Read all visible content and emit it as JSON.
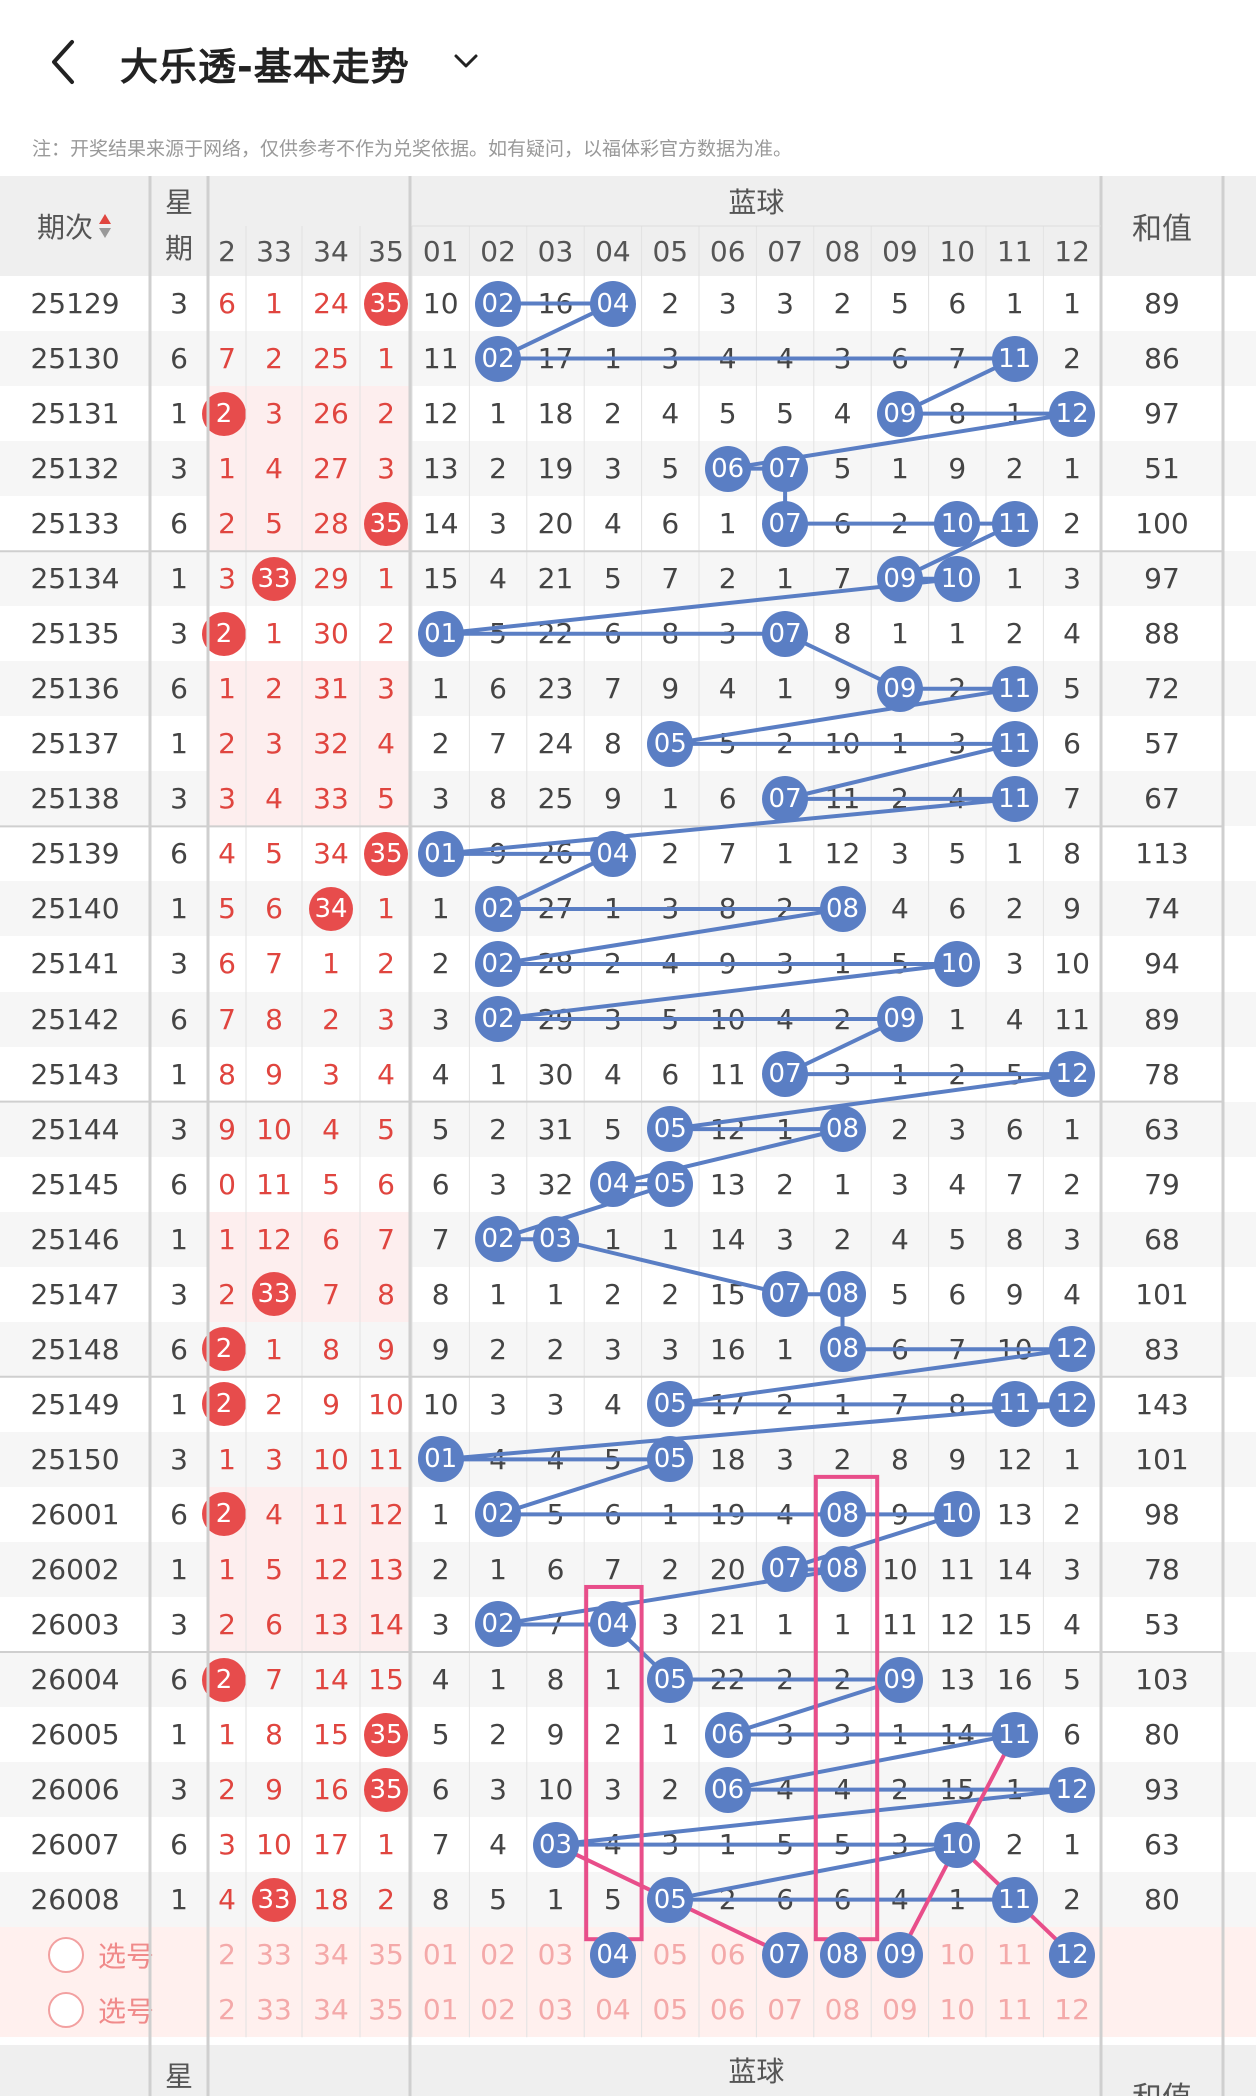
{
  "header": {
    "title": "大乐透-基本走势",
    "note": "注：开奖结果来源于网络，仅供参考不作为兑奖依据。如有疑问，以福体彩官方数据为准。"
  },
  "table": {
    "col_period": "期次",
    "col_week": "星期",
    "col_blue_group": "蓝球",
    "col_sum": "和值",
    "red_headers": [
      "2",
      "33",
      "34",
      "35"
    ],
    "blue_headers": [
      "01",
      "02",
      "03",
      "04",
      "05",
      "06",
      "07",
      "08",
      "09",
      "10",
      "11",
      "12"
    ],
    "rows": [
      {
        "p": "25129",
        "w": "3",
        "red": [
          "6",
          "1",
          "24",
          "35"
        ],
        "redHit": [
          false,
          false,
          false,
          true
        ],
        "blue": [
          "10",
          "02",
          "16",
          "04",
          "2",
          "3",
          "3",
          "2",
          "5",
          "6",
          "1",
          "1"
        ],
        "sum": "89"
      },
      {
        "p": "25130",
        "w": "6",
        "red": [
          "7",
          "2",
          "25",
          "1"
        ],
        "redHit": [
          false,
          false,
          false,
          false
        ],
        "blue": [
          "11",
          "02",
          "17",
          "1",
          "3",
          "4",
          "4",
          "3",
          "6",
          "7",
          "11",
          "2"
        ],
        "sum": "86"
      },
      {
        "p": "25131",
        "w": "1",
        "red": [
          "2",
          "3",
          "26",
          "2"
        ],
        "redHit": [
          true,
          false,
          false,
          false
        ],
        "blue": [
          "12",
          "1",
          "18",
          "2",
          "4",
          "5",
          "5",
          "4",
          "09",
          "8",
          "1",
          "12"
        ],
        "sum": "97"
      },
      {
        "p": "25132",
        "w": "3",
        "red": [
          "1",
          "4",
          "27",
          "3"
        ],
        "redHit": [
          false,
          false,
          false,
          false
        ],
        "blue": [
          "13",
          "2",
          "19",
          "3",
          "5",
          "06",
          "07",
          "5",
          "1",
          "9",
          "2",
          "1"
        ],
        "sum": "51"
      },
      {
        "p": "25133",
        "w": "6",
        "red": [
          "2",
          "5",
          "28",
          "35"
        ],
        "redHit": [
          false,
          false,
          false,
          true
        ],
        "blue": [
          "14",
          "3",
          "20",
          "4",
          "6",
          "1",
          "07",
          "6",
          "2",
          "10",
          "11",
          "2"
        ],
        "sum": "100"
      },
      {
        "p": "25134",
        "w": "1",
        "red": [
          "3",
          "33",
          "29",
          "1"
        ],
        "redHit": [
          false,
          true,
          false,
          false
        ],
        "blue": [
          "15",
          "4",
          "21",
          "5",
          "7",
          "2",
          "1",
          "7",
          "09",
          "10",
          "1",
          "3"
        ],
        "sum": "97"
      },
      {
        "p": "25135",
        "w": "3",
        "red": [
          "2",
          "1",
          "30",
          "2"
        ],
        "redHit": [
          true,
          false,
          false,
          false
        ],
        "blue": [
          "01",
          "5",
          "22",
          "6",
          "8",
          "3",
          "07",
          "8",
          "1",
          "1",
          "2",
          "4"
        ],
        "sum": "88"
      },
      {
        "p": "25136",
        "w": "6",
        "red": [
          "1",
          "2",
          "31",
          "3"
        ],
        "redHit": [
          false,
          false,
          false,
          false
        ],
        "blue": [
          "1",
          "6",
          "23",
          "7",
          "9",
          "4",
          "1",
          "9",
          "09",
          "2",
          "11",
          "5"
        ],
        "sum": "72"
      },
      {
        "p": "25137",
        "w": "1",
        "red": [
          "2",
          "3",
          "32",
          "4"
        ],
        "redHit": [
          false,
          false,
          false,
          false
        ],
        "blue": [
          "2",
          "7",
          "24",
          "8",
          "05",
          "5",
          "2",
          "10",
          "1",
          "3",
          "11",
          "6"
        ],
        "sum": "57"
      },
      {
        "p": "25138",
        "w": "3",
        "red": [
          "3",
          "4",
          "33",
          "5"
        ],
        "redHit": [
          false,
          false,
          false,
          false
        ],
        "blue": [
          "3",
          "8",
          "25",
          "9",
          "1",
          "6",
          "07",
          "11",
          "2",
          "4",
          "11",
          "7"
        ],
        "sum": "67"
      },
      {
        "p": "25139",
        "w": "6",
        "red": [
          "4",
          "5",
          "34",
          "35"
        ],
        "redHit": [
          false,
          false,
          false,
          true
        ],
        "blue": [
          "01",
          "9",
          "26",
          "04",
          "2",
          "7",
          "1",
          "12",
          "3",
          "5",
          "1",
          "8"
        ],
        "sum": "113"
      },
      {
        "p": "25140",
        "w": "1",
        "red": [
          "5",
          "6",
          "34",
          "1"
        ],
        "redHit": [
          false,
          false,
          true,
          false
        ],
        "blue": [
          "1",
          "02",
          "27",
          "1",
          "3",
          "8",
          "2",
          "08",
          "4",
          "6",
          "2",
          "9"
        ],
        "sum": "74"
      },
      {
        "p": "25141",
        "w": "3",
        "red": [
          "6",
          "7",
          "1",
          "2"
        ],
        "redHit": [
          false,
          false,
          false,
          false
        ],
        "blue": [
          "2",
          "02",
          "28",
          "2",
          "4",
          "9",
          "3",
          "1",
          "5",
          "10",
          "3",
          "10"
        ],
        "sum": "94"
      },
      {
        "p": "25142",
        "w": "6",
        "red": [
          "7",
          "8",
          "2",
          "3"
        ],
        "redHit": [
          false,
          false,
          false,
          false
        ],
        "blue": [
          "3",
          "02",
          "29",
          "3",
          "5",
          "10",
          "4",
          "2",
          "09",
          "1",
          "4",
          "11"
        ],
        "sum": "89"
      },
      {
        "p": "25143",
        "w": "1",
        "red": [
          "8",
          "9",
          "3",
          "4"
        ],
        "redHit": [
          false,
          false,
          false,
          false
        ],
        "blue": [
          "4",
          "1",
          "30",
          "4",
          "6",
          "11",
          "07",
          "3",
          "1",
          "2",
          "5",
          "12"
        ],
        "sum": "78"
      },
      {
        "p": "25144",
        "w": "3",
        "red": [
          "9",
          "10",
          "4",
          "5"
        ],
        "redHit": [
          false,
          false,
          false,
          false
        ],
        "blue": [
          "5",
          "2",
          "31",
          "5",
          "05",
          "12",
          "1",
          "08",
          "2",
          "3",
          "6",
          "1"
        ],
        "sum": "63"
      },
      {
        "p": "25145",
        "w": "6",
        "red": [
          "0",
          "11",
          "5",
          "6"
        ],
        "redHit": [
          false,
          false,
          false,
          false
        ],
        "blue": [
          "6",
          "3",
          "32",
          "04",
          "05",
          "13",
          "2",
          "1",
          "3",
          "4",
          "7",
          "2"
        ],
        "sum": "79"
      },
      {
        "p": "25146",
        "w": "1",
        "red": [
          "1",
          "12",
          "6",
          "7"
        ],
        "redHit": [
          false,
          false,
          false,
          false
        ],
        "blue": [
          "7",
          "02",
          "03",
          "1",
          "1",
          "14",
          "3",
          "2",
          "4",
          "5",
          "8",
          "3"
        ],
        "sum": "68"
      },
      {
        "p": "25147",
        "w": "3",
        "red": [
          "2",
          "33",
          "7",
          "8"
        ],
        "redHit": [
          false,
          true,
          false,
          false
        ],
        "blue": [
          "8",
          "1",
          "1",
          "2",
          "2",
          "15",
          "07",
          "08",
          "5",
          "6",
          "9",
          "4"
        ],
        "sum": "101"
      },
      {
        "p": "25148",
        "w": "6",
        "red": [
          "2",
          "1",
          "8",
          "9"
        ],
        "redHit": [
          true,
          false,
          false,
          false
        ],
        "blue": [
          "9",
          "2",
          "2",
          "3",
          "3",
          "16",
          "1",
          "08",
          "6",
          "7",
          "10",
          "12"
        ],
        "sum": "83"
      },
      {
        "p": "25149",
        "w": "1",
        "red": [
          "2",
          "2",
          "9",
          "10"
        ],
        "redHit": [
          true,
          false,
          false,
          false
        ],
        "blue": [
          "10",
          "3",
          "3",
          "4",
          "05",
          "17",
          "2",
          "1",
          "7",
          "8",
          "11",
          "12"
        ],
        "sum": "143"
      },
      {
        "p": "25150",
        "w": "3",
        "red": [
          "1",
          "3",
          "10",
          "11"
        ],
        "redHit": [
          false,
          false,
          false,
          false
        ],
        "blue": [
          "01",
          "4",
          "4",
          "5",
          "05",
          "18",
          "3",
          "2",
          "8",
          "9",
          "12",
          "1"
        ],
        "sum": "101"
      },
      {
        "p": "26001",
        "w": "6",
        "red": [
          "2",
          "4",
          "11",
          "12"
        ],
        "redHit": [
          true,
          false,
          false,
          false
        ],
        "blue": [
          "1",
          "02",
          "5",
          "6",
          "1",
          "19",
          "4",
          "08",
          "9",
          "10",
          "13",
          "2"
        ],
        "sum": "98"
      },
      {
        "p": "26002",
        "w": "1",
        "red": [
          "1",
          "5",
          "12",
          "13"
        ],
        "redHit": [
          false,
          false,
          false,
          false
        ],
        "blue": [
          "2",
          "1",
          "6",
          "7",
          "2",
          "20",
          "07",
          "08",
          "10",
          "11",
          "14",
          "3"
        ],
        "sum": "78"
      },
      {
        "p": "26003",
        "w": "3",
        "red": [
          "2",
          "6",
          "13",
          "14"
        ],
        "redHit": [
          false,
          false,
          false,
          false
        ],
        "blue": [
          "3",
          "02",
          "7",
          "04",
          "3",
          "21",
          "1",
          "1",
          "11",
          "12",
          "15",
          "4"
        ],
        "sum": "53"
      },
      {
        "p": "26004",
        "w": "6",
        "red": [
          "2",
          "7",
          "14",
          "15"
        ],
        "redHit": [
          true,
          false,
          false,
          false
        ],
        "blue": [
          "4",
          "1",
          "8",
          "1",
          "05",
          "22",
          "2",
          "2",
          "09",
          "13",
          "16",
          "5"
        ],
        "sum": "103"
      },
      {
        "p": "26005",
        "w": "1",
        "red": [
          "1",
          "8",
          "15",
          "35"
        ],
        "redHit": [
          false,
          false,
          false,
          true
        ],
        "blue": [
          "5",
          "2",
          "9",
          "2",
          "1",
          "06",
          "3",
          "3",
          "1",
          "14",
          "11",
          "6"
        ],
        "sum": "80"
      },
      {
        "p": "26006",
        "w": "3",
        "red": [
          "2",
          "9",
          "16",
          "35"
        ],
        "redHit": [
          false,
          false,
          false,
          true
        ],
        "blue": [
          "6",
          "3",
          "10",
          "3",
          "2",
          "06",
          "4",
          "4",
          "2",
          "15",
          "1",
          "12"
        ],
        "sum": "93"
      },
      {
        "p": "26007",
        "w": "6",
        "red": [
          "3",
          "10",
          "17",
          "1"
        ],
        "redHit": [
          false,
          false,
          false,
          false
        ],
        "blue": [
          "7",
          "4",
          "03",
          "4",
          "3",
          "1",
          "5",
          "5",
          "3",
          "10",
          "2",
          "1"
        ],
        "sum": "63"
      },
      {
        "p": "26008",
        "w": "1",
        "red": [
          "4",
          "33",
          "18",
          "2"
        ],
        "redHit": [
          false,
          true,
          false,
          false
        ],
        "blue": [
          "8",
          "5",
          "1",
          "5",
          "05",
          "2",
          "6",
          "6",
          "4",
          "1",
          "11",
          "2"
        ],
        "sum": "80"
      }
    ],
    "select_label": "选号",
    "select_red": [
      "2",
      "33",
      "34",
      "35"
    ],
    "select_blue": [
      "01",
      "02",
      "03",
      "04",
      "05",
      "06",
      "07",
      "08",
      "09",
      "10",
      "11",
      "12"
    ],
    "selected_blue": [
      "04",
      "07",
      "08",
      "09",
      "12"
    ],
    "footer_period": "-",
    "footer_week": "星期",
    "footer_blue_group": "蓝球",
    "footer_sum": "和值"
  },
  "colors": {
    "blue_ball": "#5a7ec4",
    "red_ball": "#e74c4c",
    "pink_line": "#e84e8a"
  }
}
